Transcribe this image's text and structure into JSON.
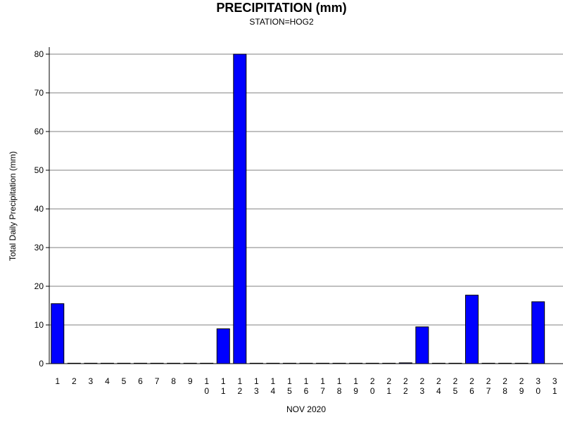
{
  "chart_data": {
    "type": "bar",
    "title": "PRECIPITATION (mm)",
    "subtitle": "STATION=HOG2",
    "xlabel": "NOV 2020",
    "ylabel": "Total Daily Precipitation (mm)",
    "ylim": [
      0,
      80
    ],
    "yticks": [
      0,
      10,
      20,
      30,
      40,
      50,
      60,
      70,
      80
    ],
    "grid": true,
    "categories": [
      "1",
      "2",
      "3",
      "4",
      "5",
      "6",
      "7",
      "8",
      "9",
      "10",
      "11",
      "12",
      "13",
      "14",
      "15",
      "16",
      "17",
      "18",
      "19",
      "20",
      "21",
      "22",
      "23",
      "24",
      "25",
      "26",
      "27",
      "28",
      "29",
      "30",
      "31"
    ],
    "values": [
      15.5,
      0,
      0,
      0,
      0,
      0,
      0,
      0,
      0,
      0,
      9,
      80,
      0,
      0,
      0,
      0,
      0,
      0,
      0,
      0,
      0,
      0.2,
      9.5,
      0,
      0,
      17.7,
      0,
      0,
      0,
      16,
      null
    ],
    "colors": {
      "bar": "#0000ff",
      "outline": "#000000",
      "grid": "#808080"
    }
  }
}
